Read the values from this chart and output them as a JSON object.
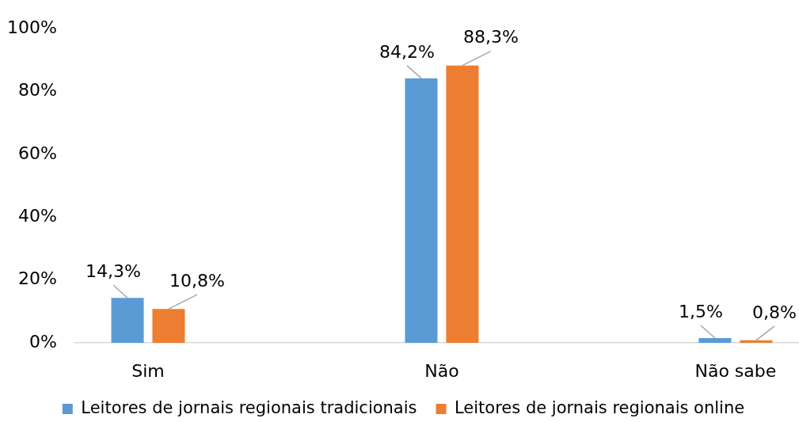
{
  "chart_data": {
    "type": "bar",
    "categories": [
      "Sim",
      "Não",
      "Não sabe"
    ],
    "series": [
      {
        "name": "Leitores de jornais regionais tradicionais",
        "color": "#5b9bd5",
        "values": [
          14.3,
          84.2,
          1.5
        ],
        "value_labels": [
          "14,3%",
          "84,2%",
          "1,5%"
        ]
      },
      {
        "name": "Leitores de jornais regionais online",
        "color": "#ed7d31",
        "values": [
          10.8,
          88.3,
          0.8
        ],
        "value_labels": [
          "10,8%",
          "88,3%",
          "0,8%"
        ]
      }
    ],
    "ylim": [
      0,
      100
    ],
    "yticks": [
      {
        "value": 0,
        "label": "0%"
      },
      {
        "value": 20,
        "label": "20%"
      },
      {
        "value": 40,
        "label": "40%"
      },
      {
        "value": 60,
        "label": "60%"
      },
      {
        "value": 80,
        "label": "80%"
      },
      {
        "value": 100,
        "label": "100%"
      }
    ],
    "legend": "bottom"
  }
}
